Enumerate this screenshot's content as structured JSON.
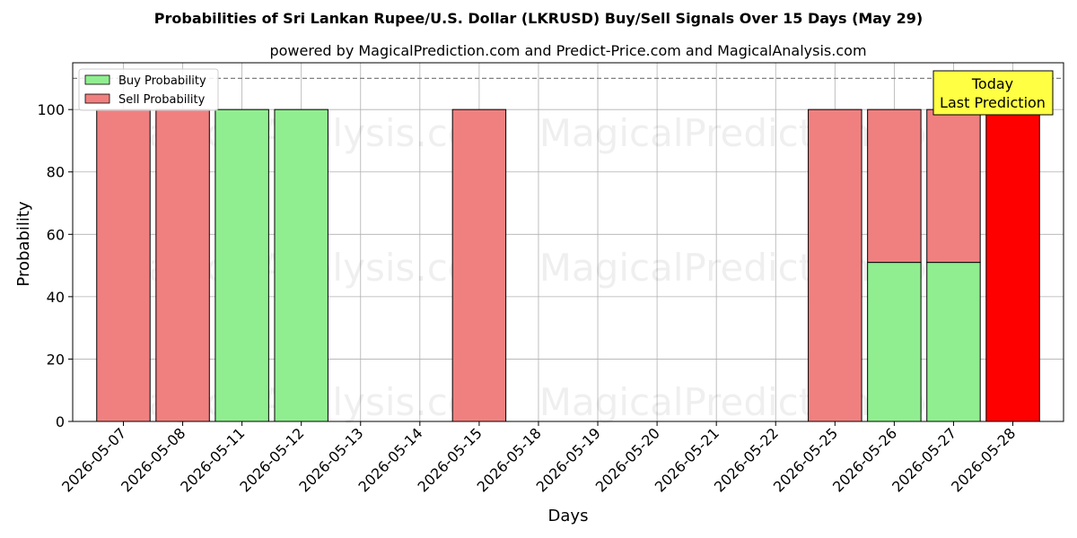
{
  "chart_data": {
    "type": "bar",
    "title": "Probabilities of Sri Lankan Rupee/U.S. Dollar (LKRUSD) Buy/Sell Signals Over 15 Days (May 29)",
    "subtitle": "powered by MagicalPrediction.com and Predict-Price.com and MagicalAnalysis.com",
    "xlabel": "Days",
    "ylabel": "Probability",
    "ylim": [
      0,
      115
    ],
    "yticks": [
      0,
      20,
      40,
      60,
      80,
      100
    ],
    "reference_line": 110,
    "grid": true,
    "legend_position": "top-left",
    "categories": [
      "2026-05-07",
      "2026-05-08",
      "2026-05-11",
      "2026-05-12",
      "2026-05-13",
      "2026-05-14",
      "2026-05-15",
      "2026-05-18",
      "2026-05-19",
      "2026-05-20",
      "2026-05-21",
      "2026-05-22",
      "2026-05-25",
      "2026-05-26",
      "2026-05-27",
      "2026-05-28"
    ],
    "series": [
      {
        "name": "Buy Probability",
        "color": "#90ee90",
        "values": [
          0,
          0,
          100,
          100,
          0,
          0,
          0,
          0,
          0,
          0,
          0,
          0,
          0,
          51,
          51,
          0
        ]
      },
      {
        "name": "Sell Probability",
        "color": "#f08080",
        "values": [
          100,
          100,
          0,
          0,
          0,
          0,
          100,
          0,
          0,
          0,
          0,
          0,
          100,
          49,
          49,
          100
        ]
      }
    ],
    "highlight": {
      "category": "2026-05-28",
      "color": "#ff0000",
      "annotation": [
        "Today",
        "Last Prediction"
      ],
      "annotation_color": "#ffff44"
    },
    "watermarks": [
      "MagicalAnalysis.com",
      "MagicalPrediction.com"
    ]
  }
}
